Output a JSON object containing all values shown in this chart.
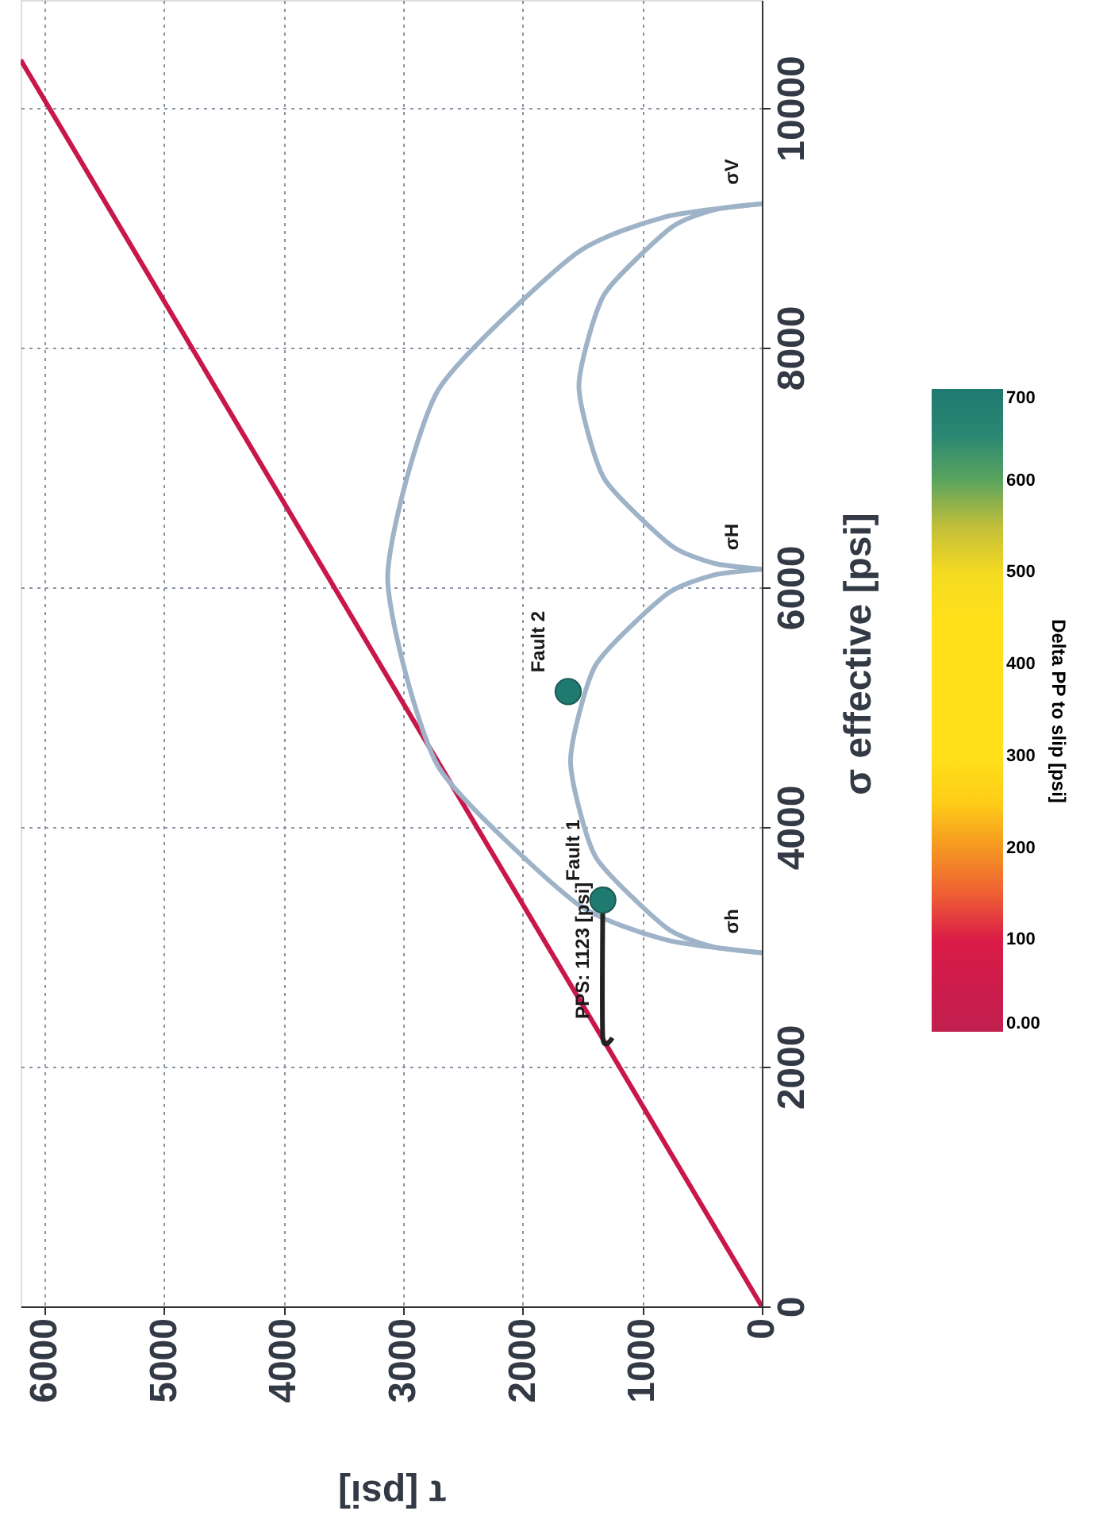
{
  "chart_data": {
    "type": "line",
    "xlabel": "τ [psi]",
    "ylabel": "σ effective [psi]",
    "clabel": "Delta PP to slip [psi]",
    "xlim": [
      6200,
      0
    ],
    "ylim": [
      0,
      10900
    ],
    "xticks": [
      6000,
      5000,
      4000,
      3000,
      2000,
      1000,
      0
    ],
    "yticks": [
      0,
      2000,
      4000,
      6000,
      8000,
      10000
    ],
    "clim": [
      0,
      700
    ],
    "cticks": [
      {
        "value": 0,
        "label": "0.00"
      },
      100,
      200,
      300,
      400,
      500,
      600,
      700
    ],
    "grid": true,
    "series": [
      {
        "color": "#c8174a",
        "x": [
          0,
          6200
        ],
        "values": [
          0,
          10400
        ]
      },
      {
        "color": "#9fb3c8",
        "x": [
          0,
          410,
          800,
          1390,
          1600,
          1390,
          800,
          410,
          0
        ],
        "values": [
          2950,
          3000,
          3160,
          3750,
          4550,
          5350,
          5940,
          6100,
          6150
        ]
      },
      {
        "color": "#9fb3c8",
        "x": [
          0,
          400,
          760,
          1320,
          1530,
          1320,
          760,
          400,
          0
        ],
        "values": [
          6150,
          6200,
          6350,
          6910,
          7680,
          8440,
          9000,
          9150,
          9200
        ]
      },
      {
        "color": "#9fb3c8",
        "x": [
          0,
          810,
          1560,
          2710,
          3130,
          2710,
          1560,
          810,
          0
        ],
        "values": [
          2950,
          3060,
          3370,
          4510,
          6080,
          7640,
          8780,
          9090,
          9200
        ]
      },
      {
        "color": "#222222",
        "x": [
          1330,
          1330,
          1250
        ],
        "values": [
          3390,
          2240,
          2240
        ]
      },
      {
        "type": "scatter",
        "x": [
          1330,
          1620
        ],
        "values": [
          3390,
          5130
        ],
        "cvalues": [
          700,
          700
        ]
      }
    ],
    "annotations": [
      {
        "text": "σh",
        "x": 0,
        "y": 2950
      },
      {
        "text": "σH",
        "x": 0,
        "y": 6150
      },
      {
        "text": "σV",
        "x": 0,
        "y": 9200
      },
      {
        "text": "Fault 1",
        "x": 1330,
        "y": 3390
      },
      {
        "text": "Fault 2",
        "x": 1620,
        "y": 5130
      },
      {
        "text": "PPS: 1123 [psi]",
        "x": 1250,
        "y": 2240
      }
    ]
  }
}
